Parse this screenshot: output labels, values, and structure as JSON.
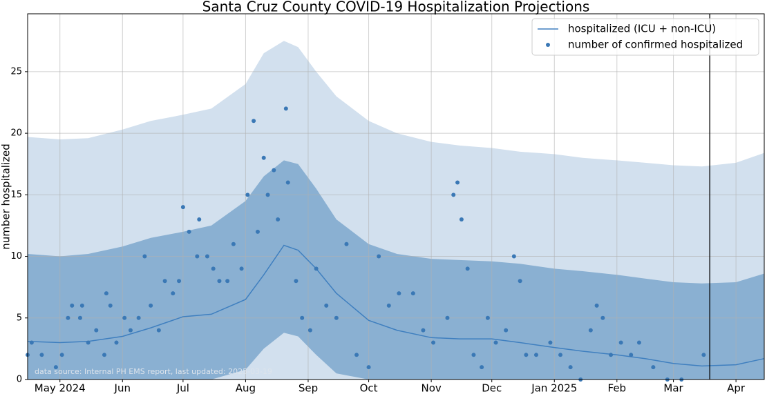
{
  "chart_data": {
    "type": "line",
    "title": "Santa Cruz County COVID-19 Hospitalization Projections",
    "ylabel": "number hospitalized",
    "annotation": "data source: Internal PH EMS report, last updated: 2025-03-19",
    "xlim": [
      "2024-04-15",
      "2025-04-15"
    ],
    "xticks": [
      {
        "value": "2024-05-01",
        "label": "May 2024"
      },
      {
        "value": "2024-06-01",
        "label": "Jun"
      },
      {
        "value": "2024-07-01",
        "label": "Jul"
      },
      {
        "value": "2024-08-01",
        "label": "Aug"
      },
      {
        "value": "2024-09-01",
        "label": "Sep"
      },
      {
        "value": "2024-10-01",
        "label": "Oct"
      },
      {
        "value": "2024-11-01",
        "label": "Nov"
      },
      {
        "value": "2024-12-01",
        "label": "Dec"
      },
      {
        "value": "2025-01-01",
        "label": "Jan 2025"
      },
      {
        "value": "2025-02-01",
        "label": "Feb"
      },
      {
        "value": "2025-03-01",
        "label": "Mar"
      },
      {
        "value": "2025-04-01",
        "label": "Apr"
      }
    ],
    "ylim": [
      0,
      29.7
    ],
    "yticks": [
      0,
      5,
      10,
      15,
      20,
      25
    ],
    "grid": true,
    "legend": "upper right",
    "vline": "2025-03-19",
    "x": [
      "2024-04-15",
      "2024-05-01",
      "2024-05-15",
      "2024-06-01",
      "2024-06-15",
      "2024-07-01",
      "2024-07-15",
      "2024-08-01",
      "2024-08-10",
      "2024-08-20",
      "2024-08-27",
      "2024-09-05",
      "2024-09-15",
      "2024-10-01",
      "2024-10-15",
      "2024-11-01",
      "2024-11-15",
      "2024-12-01",
      "2024-12-15",
      "2025-01-01",
      "2025-01-15",
      "2025-02-01",
      "2025-02-15",
      "2025-03-01",
      "2025-03-15",
      "2025-04-01",
      "2025-04-15"
    ],
    "bands": [
      {
        "color": "#d2e0ee",
        "upper": [
          19.7,
          19.5,
          19.6,
          20.3,
          21.0,
          21.5,
          22.0,
          24.0,
          26.5,
          27.5,
          27.0,
          25.0,
          23.0,
          21.0,
          20.0,
          19.3,
          19.0,
          18.8,
          18.5,
          18.3,
          18.0,
          17.8,
          17.6,
          17.4,
          17.3,
          17.6,
          18.4
        ],
        "lower": [
          0,
          0,
          0,
          0,
          0,
          0,
          0,
          0,
          0,
          0,
          0,
          0,
          0,
          0,
          0,
          0,
          0,
          0,
          0,
          0,
          0,
          0,
          0,
          0,
          0,
          0,
          0
        ]
      },
      {
        "color": "#8ab0d2",
        "upper": [
          10.2,
          10.0,
          10.2,
          10.8,
          11.5,
          12.0,
          12.5,
          14.5,
          16.5,
          17.8,
          17.5,
          15.5,
          13.0,
          11.0,
          10.2,
          9.8,
          9.7,
          9.6,
          9.4,
          9.0,
          8.8,
          8.5,
          8.2,
          7.9,
          7.8,
          7.9,
          8.6
        ],
        "lower": [
          0,
          0,
          0,
          0,
          0,
          0,
          0,
          0.8,
          2.5,
          3.8,
          3.5,
          2.0,
          0.5,
          0,
          0,
          0,
          0,
          0,
          0,
          0,
          0,
          0,
          0,
          0,
          0,
          0,
          0
        ]
      }
    ],
    "series": [
      {
        "name": "hospitalized (ICU + non-ICU)",
        "color": "#3f7fbf",
        "values": [
          3.1,
          3.0,
          3.1,
          3.5,
          4.2,
          5.1,
          5.3,
          6.5,
          8.5,
          10.9,
          10.5,
          9.0,
          7.0,
          4.8,
          4.0,
          3.4,
          3.3,
          3.3,
          3.0,
          2.6,
          2.3,
          2.0,
          1.7,
          1.3,
          1.1,
          1.2,
          1.7
        ]
      }
    ],
    "points": {
      "name": "number of confirmed hospitalized",
      "color": "#3a78b5",
      "x": [
        "2024-04-15",
        "2024-04-17",
        "2024-04-22",
        "2024-04-29",
        "2024-05-02",
        "2024-05-05",
        "2024-05-07",
        "2024-05-11",
        "2024-05-12",
        "2024-05-15",
        "2024-05-19",
        "2024-05-23",
        "2024-05-24",
        "2024-05-26",
        "2024-05-29",
        "2024-06-02",
        "2024-06-05",
        "2024-06-09",
        "2024-06-12",
        "2024-06-15",
        "2024-06-19",
        "2024-06-22",
        "2024-06-26",
        "2024-06-29",
        "2024-07-01",
        "2024-07-04",
        "2024-07-08",
        "2024-07-09",
        "2024-07-13",
        "2024-07-16",
        "2024-07-19",
        "2024-07-23",
        "2024-07-26",
        "2024-07-30",
        "2024-08-02",
        "2024-08-05",
        "2024-08-07",
        "2024-08-10",
        "2024-08-12",
        "2024-08-15",
        "2024-08-17",
        "2024-08-21",
        "2024-08-22",
        "2024-08-26",
        "2024-08-29",
        "2024-09-02",
        "2024-09-05",
        "2024-09-10",
        "2024-09-15",
        "2024-09-20",
        "2024-09-25",
        "2024-10-01",
        "2024-10-06",
        "2024-10-11",
        "2024-10-16",
        "2024-10-23",
        "2024-10-28",
        "2024-11-02",
        "2024-11-09",
        "2024-11-12",
        "2024-11-14",
        "2024-11-16",
        "2024-11-19",
        "2024-11-22",
        "2024-11-26",
        "2024-11-29",
        "2024-12-03",
        "2024-12-08",
        "2024-12-12",
        "2024-12-15",
        "2024-12-18",
        "2024-12-23",
        "2024-12-30",
        "2025-01-04",
        "2025-01-09",
        "2025-01-14",
        "2025-01-19",
        "2025-01-22",
        "2025-01-25",
        "2025-01-29",
        "2025-02-03",
        "2025-02-08",
        "2025-02-12",
        "2025-02-19",
        "2025-02-26",
        "2025-03-05",
        "2025-03-16"
      ],
      "values": [
        2,
        3,
        2,
        1,
        2,
        5,
        6,
        5,
        6,
        3,
        4,
        2,
        7,
        6,
        3,
        5,
        4,
        5,
        10,
        6,
        4,
        8,
        7,
        8,
        14,
        12,
        10,
        13,
        10,
        9,
        8,
        8,
        11,
        9,
        15,
        21,
        12,
        18,
        15,
        17,
        13,
        22,
        16,
        8,
        5,
        4,
        9,
        6,
        5,
        11,
        2,
        1,
        10,
        6,
        7,
        7,
        4,
        3,
        5,
        15,
        16,
        13,
        9,
        2,
        1,
        5,
        3,
        4,
        10,
        8,
        2,
        2,
        3,
        2,
        1,
        0,
        4,
        6,
        5,
        2,
        3,
        2,
        3,
        1,
        0,
        0,
        2
      ]
    }
  }
}
